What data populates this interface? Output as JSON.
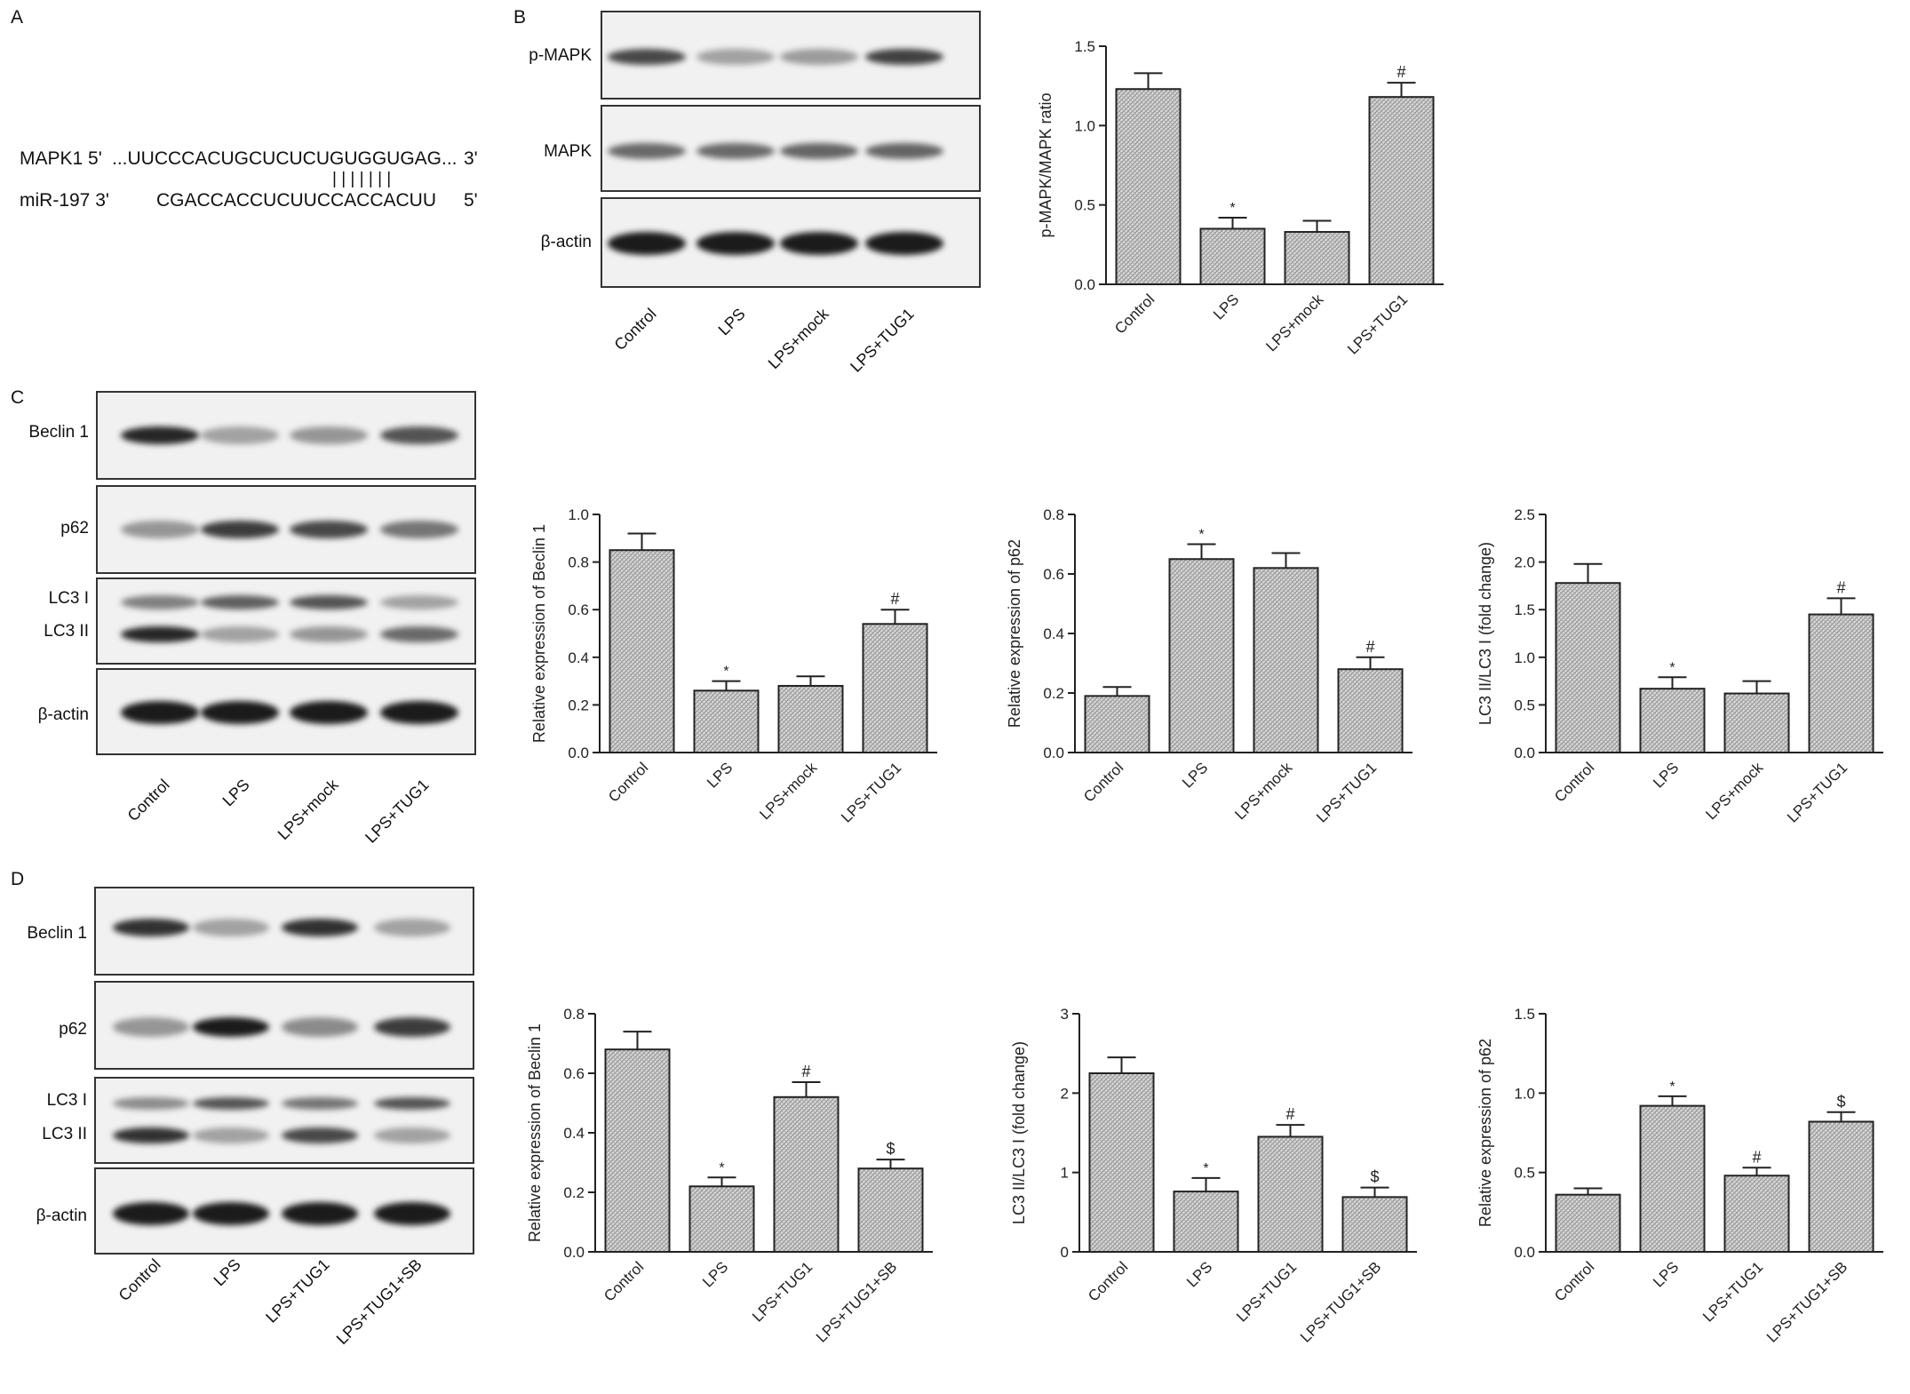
{
  "panels": {
    "A": {
      "letter": "A",
      "mapk1_label": "MAPK1 5'",
      "mapk1_seq": "...UUCCCACUGCUCUCUGUGGUGAG...",
      "mapk1_end": "3'",
      "pairs": "| | | | | | |",
      "mir_label": "miR-197 3'",
      "mir_seq": "CGACCACCUCUUCCACCACUU",
      "mir_end": "5'"
    },
    "B": {
      "letter": "B",
      "blot_labels": [
        "p-MAPK",
        "MAPK",
        "β-actin"
      ],
      "lanes": [
        "Control",
        "LPS",
        "LPS+mock",
        "LPS+TUG1"
      ]
    },
    "C": {
      "letter": "C",
      "blot_labels": [
        "Beclin 1",
        "p62",
        "LC3 I",
        "LC3 II",
        "β-actin"
      ],
      "lanes": [
        "Control",
        "LPS",
        "LPS+mock",
        "LPS+TUG1"
      ]
    },
    "D": {
      "letter": "D",
      "blot_labels": [
        "Beclin 1",
        "p62",
        "LC3 I",
        "LC3 II",
        "β-actin"
      ],
      "lanes": [
        "Control",
        "LPS",
        "LPS+TUG1",
        "LPS+TUG1+SB"
      ]
    }
  },
  "chart_data": [
    {
      "id": "B",
      "type": "bar",
      "categories": [
        "Control",
        "LPS",
        "LPS+mock",
        "LPS+TUG1"
      ],
      "values": [
        1.23,
        0.35,
        0.33,
        1.18
      ],
      "errors": [
        0.1,
        0.07,
        0.07,
        0.09
      ],
      "marks": [
        "",
        "*",
        "",
        "#"
      ],
      "ylabel": "p-MAPK/MAPK ratio",
      "ylim": [
        0,
        1.5
      ],
      "yticks": [
        "0.0",
        "0.5",
        "1.0",
        "1.5"
      ]
    },
    {
      "id": "C1",
      "type": "bar",
      "categories": [
        "Control",
        "LPS",
        "LPS+mock",
        "LPS+TUG1"
      ],
      "values": [
        0.85,
        0.26,
        0.28,
        0.54
      ],
      "errors": [
        0.07,
        0.04,
        0.04,
        0.06
      ],
      "marks": [
        "",
        "*",
        "",
        "#"
      ],
      "ylabel": "Relative expression of Beclin 1",
      "ylim": [
        0,
        1.0
      ],
      "yticks": [
        "0.0",
        "0.2",
        "0.4",
        "0.6",
        "0.8",
        "1.0"
      ]
    },
    {
      "id": "C2",
      "type": "bar",
      "categories": [
        "Control",
        "LPS",
        "LPS+mock",
        "LPS+TUG1"
      ],
      "values": [
        0.19,
        0.65,
        0.62,
        0.28
      ],
      "errors": [
        0.03,
        0.05,
        0.05,
        0.04
      ],
      "marks": [
        "",
        "*",
        "",
        "#"
      ],
      "ylabel": "Relative expression of p62",
      "ylim": [
        0,
        0.8
      ],
      "yticks": [
        "0.0",
        "0.2",
        "0.4",
        "0.6",
        "0.8"
      ]
    },
    {
      "id": "C3",
      "type": "bar",
      "categories": [
        "Control",
        "LPS",
        "LPS+mock",
        "LPS+TUG1"
      ],
      "values": [
        1.78,
        0.67,
        0.62,
        1.45
      ],
      "errors": [
        0.2,
        0.12,
        0.13,
        0.17
      ],
      "marks": [
        "",
        "*",
        "",
        "#"
      ],
      "ylabel": "LC3 II/LC3 I (fold change)",
      "ylim": [
        0,
        2.5
      ],
      "yticks": [
        "0.0",
        "0.5",
        "1.0",
        "1.5",
        "2.0",
        "2.5"
      ]
    },
    {
      "id": "D1",
      "type": "bar",
      "categories": [
        "Control",
        "LPS",
        "LPS+TUG1",
        "LPS+TUG1+SB"
      ],
      "values": [
        0.68,
        0.22,
        0.52,
        0.28
      ],
      "errors": [
        0.06,
        0.03,
        0.05,
        0.03
      ],
      "marks": [
        "",
        "*",
        "#",
        "$"
      ],
      "ylabel": "Relative expression of Beclin 1",
      "ylim": [
        0,
        0.8
      ],
      "yticks": [
        "0.0",
        "0.2",
        "0.4",
        "0.6",
        "0.8"
      ]
    },
    {
      "id": "D2",
      "type": "bar",
      "categories": [
        "Control",
        "LPS",
        "LPS+TUG1",
        "LPS+TUG1+SB"
      ],
      "values": [
        2.25,
        0.76,
        1.45,
        0.69
      ],
      "errors": [
        0.2,
        0.17,
        0.15,
        0.12
      ],
      "marks": [
        "",
        "*",
        "#",
        "$"
      ],
      "ylabel": "LC3 II/LC3 I (fold change)",
      "ylim": [
        0,
        3
      ],
      "yticks": [
        "0",
        "1",
        "2",
        "3"
      ]
    },
    {
      "id": "D3",
      "type": "bar",
      "categories": [
        "Control",
        "LPS",
        "LPS+TUG1",
        "LPS+TUG1+SB"
      ],
      "values": [
        0.36,
        0.92,
        0.48,
        0.82
      ],
      "errors": [
        0.04,
        0.06,
        0.05,
        0.06
      ],
      "marks": [
        "",
        "*",
        "#",
        "$"
      ],
      "ylabel": "Relative expression of p62",
      "ylim": [
        0,
        1.5
      ],
      "yticks": [
        "0.0",
        "0.5",
        "1.0",
        "1.5"
      ]
    }
  ]
}
